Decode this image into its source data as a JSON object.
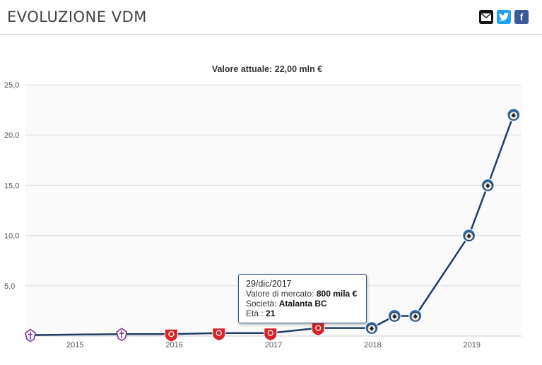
{
  "header": {
    "title": "EVOLUZIONE VDM"
  },
  "share": {
    "mail_icon": "envelope-icon",
    "twitter_icon": "twitter-icon",
    "facebook_label": "f"
  },
  "colors": {
    "line": "#1f3d66",
    "grid": "#dddddd",
    "fiorentina": "#7b3a94",
    "perugia": "#d8232a",
    "atalanta": "#2b6cb0"
  },
  "tooltip": {
    "date": "29/dic/2017",
    "market_label": "Valore di mercato:",
    "market_value": "800 mila €",
    "club_label": "Società:",
    "club_value": "Atalanta BC",
    "age_label": "Età :",
    "age_value": "21"
  },
  "chart_data": {
    "type": "line",
    "title": "Valore attuale: 22,00 mln €",
    "xlabel": "",
    "ylabel": "",
    "ylim": [
      0,
      25
    ],
    "yticks": [
      "5,0",
      "10,0",
      "15,0",
      "20,0",
      "25,0"
    ],
    "ytick_values": [
      5,
      10,
      15,
      20,
      25
    ],
    "xticks": [
      "2015",
      "2016",
      "2017",
      "2018",
      "2019"
    ],
    "xtick_values": [
      2015.0,
      2016.0,
      2017.0,
      2018.0,
      2019.0
    ],
    "xlim": [
      2014.5,
      2019.5
    ],
    "grid": true,
    "series": [
      {
        "values": [
          {
            "x": 2014.55,
            "y": 0.1,
            "club": "fiorentina"
          },
          {
            "x": 2015.47,
            "y": 0.2,
            "club": "fiorentina"
          },
          {
            "x": 2015.97,
            "y": 0.2,
            "club": "perugia"
          },
          {
            "x": 2016.45,
            "y": 0.3,
            "club": "perugia"
          },
          {
            "x": 2016.97,
            "y": 0.3,
            "club": "perugia"
          },
          {
            "x": 2017.45,
            "y": 0.8,
            "club": "perugia"
          },
          {
            "x": 2017.99,
            "y": 0.8,
            "club": "atalanta"
          },
          {
            "x": 2018.22,
            "y": 2.0,
            "club": "atalanta"
          },
          {
            "x": 2018.43,
            "y": 2.0,
            "club": "atalanta"
          },
          {
            "x": 2018.97,
            "y": 10.0,
            "club": "atalanta"
          },
          {
            "x": 2019.16,
            "y": 15.0,
            "club": "atalanta"
          },
          {
            "x": 2019.42,
            "y": 22.0,
            "club": "atalanta"
          }
        ]
      }
    ]
  }
}
